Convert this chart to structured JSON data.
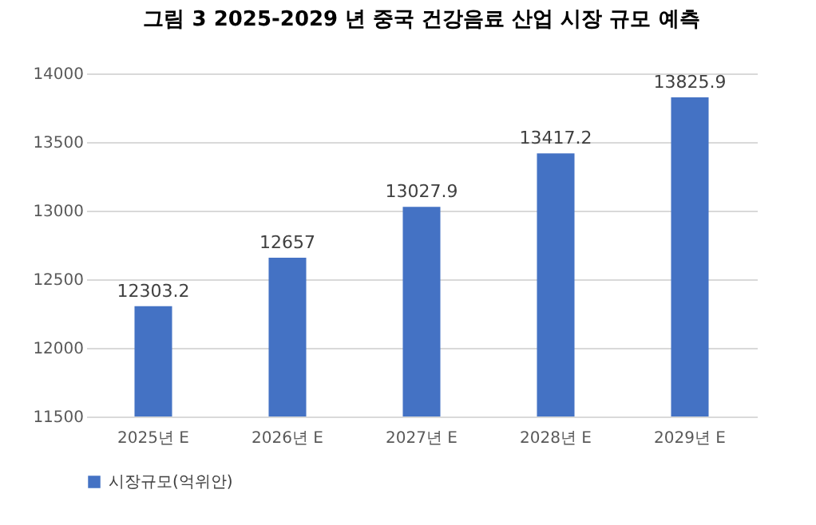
{
  "chart_data": {
    "type": "bar",
    "title": "그림 3 2025-2029 년 중국 건강음료 산업 시장 규모 예측",
    "categories": [
      "2025년 E",
      "2026년 E",
      "2027년 E",
      "2028년 E",
      "2029년 E"
    ],
    "series": [
      {
        "name": "시장규모(억위안)",
        "color": "#4472c4",
        "values": [
          12303.2,
          12657,
          13027.9,
          13417.2,
          13825.9
        ]
      }
    ],
    "ylim": [
      11500,
      14000
    ],
    "yticks": [
      11500,
      12000,
      12500,
      13000,
      13500,
      14000
    ],
    "grid": "y",
    "legend": "bottom",
    "data_labels": true
  }
}
